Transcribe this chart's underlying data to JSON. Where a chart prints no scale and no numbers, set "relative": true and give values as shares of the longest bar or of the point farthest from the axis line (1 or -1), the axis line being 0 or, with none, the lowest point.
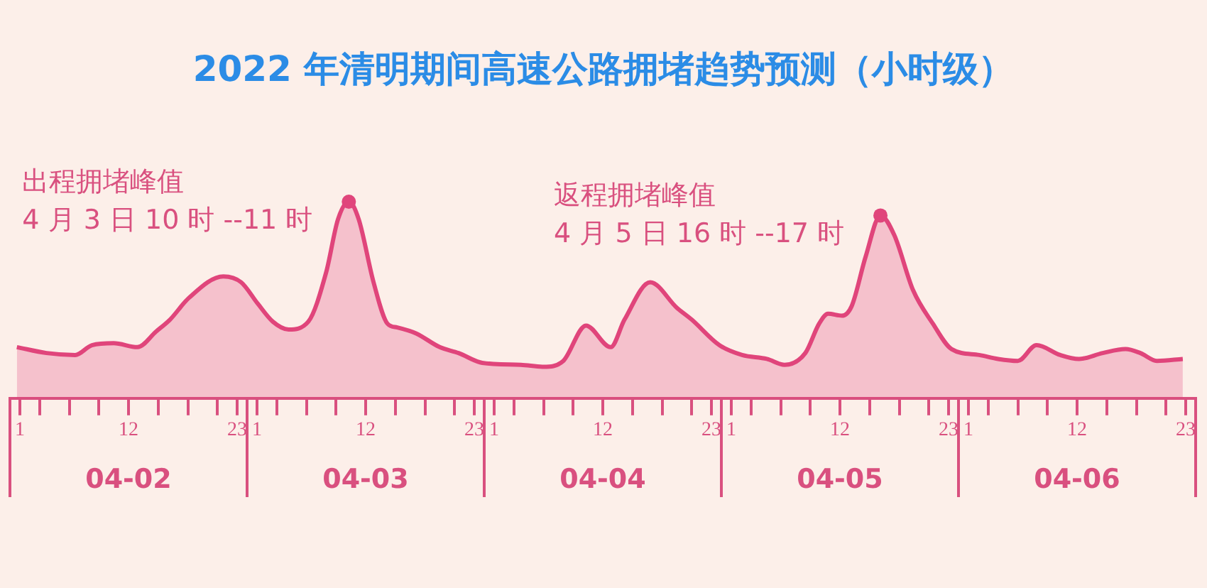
{
  "chart_data": {
    "type": "area",
    "title": "2022 年清明期间高速公路拥堵趋势预测（小时级）",
    "relative": true,
    "legend": false,
    "grid": false,
    "marker": "none",
    "xlim": [
      "--04-02T00:00",
      "--04-07T00:00"
    ],
    "xticks": [
      {
        "value": "--04-02T00:00",
        "label": null
      },
      {
        "value": "--04-03T00:00",
        "label": null
      },
      {
        "value": "--04-04T00:00",
        "label": null
      },
      {
        "value": "--04-05T00:00",
        "label": null
      },
      {
        "value": "--04-06T00:00",
        "label": null
      },
      {
        "value": "--04-07T00:00",
        "label": null
      },
      {
        "value": "--04-02T01:00",
        "label": "1"
      },
      {
        "value": "--04-02T03:00",
        "label": null
      },
      {
        "value": "--04-02T06:00",
        "label": null
      },
      {
        "value": "--04-02T09:00",
        "label": null
      },
      {
        "value": "--04-02T12:00",
        "label": "12"
      },
      {
        "value": "--04-02T15:00",
        "label": null
      },
      {
        "value": "--04-02T18:00",
        "label": null
      },
      {
        "value": "--04-02T21:00",
        "label": null
      },
      {
        "value": "--04-02T23:00",
        "label": "23"
      },
      {
        "value": "--04-03T01:00",
        "label": "1"
      },
      {
        "value": "--04-03T03:00",
        "label": null
      },
      {
        "value": "--04-03T06:00",
        "label": null
      },
      {
        "value": "--04-03T09:00",
        "label": null
      },
      {
        "value": "--04-03T12:00",
        "label": "12"
      },
      {
        "value": "--04-03T15:00",
        "label": null
      },
      {
        "value": "--04-03T18:00",
        "label": null
      },
      {
        "value": "--04-03T21:00",
        "label": null
      },
      {
        "value": "--04-03T23:00",
        "label": "23"
      },
      {
        "value": "--04-04T01:00",
        "label": "1"
      },
      {
        "value": "--04-04T03:00",
        "label": null
      },
      {
        "value": "--04-04T06:00",
        "label": null
      },
      {
        "value": "--04-04T09:00",
        "label": null
      },
      {
        "value": "--04-04T12:00",
        "label": "12"
      },
      {
        "value": "--04-04T15:00",
        "label": null
      },
      {
        "value": "--04-04T18:00",
        "label": null
      },
      {
        "value": "--04-04T21:00",
        "label": null
      },
      {
        "value": "--04-04T23:00",
        "label": "23"
      },
      {
        "value": "--04-05T01:00",
        "label": "1"
      },
      {
        "value": "--04-05T03:00",
        "label": null
      },
      {
        "value": "--04-05T06:00",
        "label": null
      },
      {
        "value": "--04-05T09:00",
        "label": null
      },
      {
        "value": "--04-05T12:00",
        "label": "12"
      },
      {
        "value": "--04-05T15:00",
        "label": null
      },
      {
        "value": "--04-05T18:00",
        "label": null
      },
      {
        "value": "--04-05T21:00",
        "label": null
      },
      {
        "value": "--04-05T23:00",
        "label": "23"
      },
      {
        "value": "--04-06T01:00",
        "label": "1"
      },
      {
        "value": "--04-06T03:00",
        "label": null
      },
      {
        "value": "--04-06T06:00",
        "label": null
      },
      {
        "value": "--04-06T09:00",
        "label": null
      },
      {
        "value": "--04-06T12:00",
        "label": "12"
      },
      {
        "value": "--04-06T15:00",
        "label": null
      },
      {
        "value": "--04-06T18:00",
        "label": null
      },
      {
        "value": "--04-06T21:00",
        "label": null
      },
      {
        "value": "--04-06T23:00",
        "label": "23"
      }
    ],
    "x2lim": [
      "--04-02T00:00",
      "--04-07T00:00"
    ],
    "x2ticks": [
      {
        "value": "--04-02T12:00",
        "label": "04-02"
      },
      {
        "value": "--04-03T12:00",
        "label": "04-03"
      },
      {
        "value": "--04-04T12:00",
        "label": "04-04"
      },
      {
        "value": "--04-05T12:00",
        "label": "04-05"
      },
      {
        "value": "--04-06T12:00",
        "label": "04-06"
      }
    ],
    "series": [
      {
        "color": "#e0457b",
        "x": [
          "--04-02T00:42",
          "--04-02T03:42",
          "--04-02T06:36",
          "--04-02T08:18",
          "--04-02T10:30",
          "--04-02T12:54",
          "--04-02T14:48",
          "--04-02T16:12",
          "--04-02T18:06",
          "--04-02T21:36",
          "--04-02T23:24",
          "--04-03T01:06",
          "--04-03T02:36",
          "--04-03T04:12",
          "--04-03T06:12",
          "--04-03T08:00",
          "--04-03T09:12",
          "--04-03T10:18",
          "--04-03T11:18",
          "--04-03T12:48",
          "--04-03T14:12",
          "--04-03T15:12",
          "--04-03T17:06",
          "--04-03T19:30",
          "--04-03T21:24",
          "--04-03T23:48",
          "--04-04T03:42",
          "--04-04T06:00",
          "--04-04T08:00",
          "--04-04T10:18",
          "--04-04T12:48",
          "--04-04T14:12",
          "--04-04T16:48",
          "--04-04T19:30",
          "--04-04T21:00",
          "--04-04T23:48",
          "--04-05T02:06",
          "--04-05T04:36",
          "--04-05T06:24",
          "--04-05T08:30",
          "--04-05T09:54",
          "--04-05T10:48",
          "--04-05T12:12",
          "--04-05T13:12",
          "--04-05T14:36",
          "--04-05T16:06",
          "--04-05T17:30",
          "--04-05T19:24",
          "--04-05T21:24",
          "--04-05T23:18",
          "--04-06T02:06",
          "--04-06T04:00",
          "--04-06T06:00",
          "--04-06T07:54",
          "--04-06T10:18",
          "--04-06T12:12",
          "--04-06T14:36",
          "--04-06T16:54",
          "--04-06T18:24",
          "--04-06T20:06",
          "--04-06T22:42"
        ],
        "values": [
          0.26,
          0.23,
          0.22,
          0.27,
          0.28,
          0.26,
          0.34,
          0.4,
          0.51,
          0.62,
          0.59,
          0.48,
          0.39,
          0.35,
          0.39,
          0.64,
          0.91,
          1.0,
          0.91,
          0.59,
          0.38,
          0.36,
          0.33,
          0.26,
          0.23,
          0.18,
          0.17,
          0.16,
          0.19,
          0.37,
          0.26,
          0.4,
          0.59,
          0.46,
          0.4,
          0.27,
          0.22,
          0.2,
          0.17,
          0.23,
          0.38,
          0.43,
          0.42,
          0.47,
          0.72,
          0.93,
          0.83,
          0.55,
          0.38,
          0.25,
          0.22,
          0.2,
          0.19,
          0.27,
          0.22,
          0.2,
          0.23,
          0.25,
          0.23,
          0.19,
          0.2
        ]
      }
    ],
    "annotations": [
      {
        "text": "出程拥堵峰值\n4 月 3 日 10 时 --11 时",
        "x": "--04-03T10:18",
        "y": 1.0
      },
      {
        "text": "返程拥堵峰值\n4 月 5 日 16 时 --17 时",
        "x": "--04-05T16:06",
        "y": 0.93
      }
    ]
  }
}
